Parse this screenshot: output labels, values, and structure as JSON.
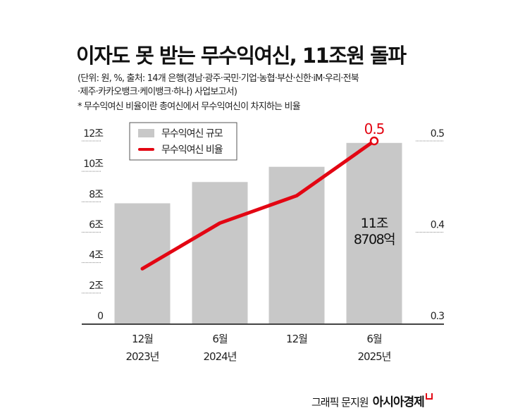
{
  "title": "이자도 못 받는 무수익여신, 11조원 돌파",
  "source_lines": [
    "(단위: 원, %, 출처: 14개 은행(경남·광주·국민·기업·농협·부산·신한·iM·우리·전북",
    "·제주·카카오뱅크·케이뱅크·하나) 사업보고서)",
    "* 무수익여신 비율이란 총여신에서 무수익여신이 차지하는 비율"
  ],
  "footer": {
    "credit": "그래픽 문지원",
    "brand": "아시아경제"
  },
  "colors": {
    "bar": "#c8c8c8",
    "line": "#e30613",
    "axis": "#444444",
    "brand_mark": "#e30613"
  },
  "chart_data": {
    "type": "bar+line",
    "categories": [
      [
        "12월",
        "2023년"
      ],
      [
        "6월",
        "2024년"
      ],
      [
        "12월",
        ""
      ],
      [
        "6월",
        "2025년"
      ]
    ],
    "series": [
      {
        "name": "무수익여신 규모",
        "type": "bar",
        "axis": "left",
        "values": [
          7.9,
          9.3,
          10.3,
          11.87
        ]
      },
      {
        "name": "무수익여신 비율",
        "type": "line",
        "axis": "right",
        "values": [
          0.36,
          0.41,
          0.44,
          0.5
        ]
      }
    ],
    "left_axis": {
      "range": [
        0,
        12
      ],
      "ticks": [
        "0",
        "2조",
        "4조",
        "6조",
        "8조",
        "10조",
        "12조"
      ]
    },
    "right_axis": {
      "range": [
        0.3,
        0.5
      ],
      "ticks": [
        "0.3",
        "0.4",
        "0.5"
      ]
    },
    "annotations": {
      "last_bar_label": [
        "11조",
        "8708억"
      ],
      "last_point_label": "0.5"
    },
    "legend": {
      "placement": "top-left",
      "entries": [
        "무수익여신 규모",
        "무수익여신 비율"
      ]
    },
    "grid": "dotted tick lines at axes only"
  }
}
